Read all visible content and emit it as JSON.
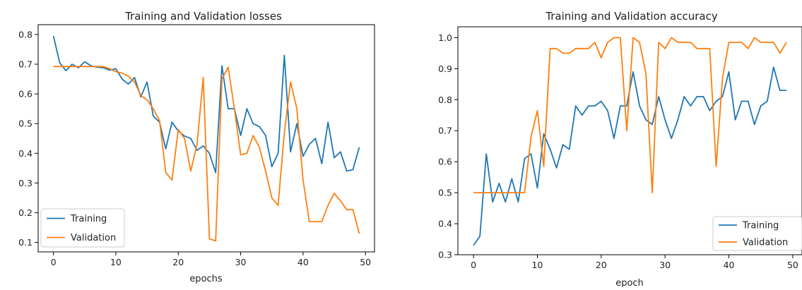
{
  "colors": {
    "training": "#1f77b4",
    "validation": "#ff7f0e",
    "axis": "#000000",
    "legend_border": "#cccccc"
  },
  "chart_data": [
    {
      "type": "line",
      "title": "Training and Validation losses",
      "xlabel": "epochs",
      "ylabel": "",
      "xlim": [
        -2.45,
        51.45
      ],
      "ylim": [
        0.068,
        0.833
      ],
      "xticks": [
        0,
        10,
        20,
        30,
        40,
        50
      ],
      "yticks": [
        0.1,
        0.2,
        0.3,
        0.4,
        0.5,
        0.6,
        0.7,
        0.8
      ],
      "xtick_labels": [
        "0",
        "10",
        "20",
        "30",
        "40",
        "50"
      ],
      "ytick_labels": [
        "0.1",
        "0.2",
        "0.3",
        "0.4",
        "0.5",
        "0.6",
        "0.7",
        "0.8"
      ],
      "grid": false,
      "legend_position": "lower-left",
      "x": [
        0,
        1,
        2,
        3,
        4,
        5,
        6,
        7,
        8,
        9,
        10,
        11,
        12,
        13,
        14,
        15,
        16,
        17,
        18,
        19,
        20,
        21,
        22,
        23,
        24,
        25,
        26,
        27,
        28,
        29,
        30,
        31,
        32,
        33,
        34,
        35,
        36,
        37,
        38,
        39,
        40,
        41,
        42,
        43,
        44,
        45,
        46,
        47,
        48,
        49
      ],
      "series": [
        {
          "name": "Training",
          "color": "#1f77b4",
          "values": [
            0.795,
            0.705,
            0.678,
            0.7,
            0.688,
            0.708,
            0.695,
            0.69,
            0.688,
            0.68,
            0.685,
            0.65,
            0.633,
            0.655,
            0.59,
            0.64,
            0.525,
            0.505,
            0.415,
            0.505,
            0.475,
            0.458,
            0.45,
            0.41,
            0.425,
            0.4,
            0.335,
            0.695,
            0.55,
            0.55,
            0.46,
            0.55,
            0.5,
            0.49,
            0.46,
            0.355,
            0.4,
            0.73,
            0.405,
            0.5,
            0.39,
            0.43,
            0.45,
            0.365,
            0.505,
            0.385,
            0.405,
            0.34,
            0.345,
            0.42
          ]
        },
        {
          "name": "Validation",
          "color": "#ff7f0e",
          "values": [
            0.692,
            0.692,
            0.692,
            0.692,
            0.692,
            0.692,
            0.692,
            0.692,
            0.692,
            0.685,
            0.675,
            0.67,
            0.66,
            0.64,
            0.595,
            0.58,
            0.55,
            0.51,
            0.335,
            0.31,
            0.48,
            0.45,
            0.34,
            0.43,
            0.655,
            0.112,
            0.105,
            0.65,
            0.69,
            0.55,
            0.395,
            0.4,
            0.46,
            0.42,
            0.34,
            0.25,
            0.225,
            0.47,
            0.64,
            0.55,
            0.31,
            0.17,
            0.17,
            0.17,
            0.225,
            0.265,
            0.24,
            0.21,
            0.21,
            0.13
          ]
        }
      ]
    },
    {
      "type": "line",
      "title": "Training and Validation accuracy",
      "xlabel": "epoch",
      "ylabel": "",
      "xlim": [
        -2.45,
        51.45
      ],
      "ylim": [
        0.3,
        1.035
      ],
      "xticks": [
        0,
        10,
        20,
        30,
        40,
        50
      ],
      "yticks": [
        0.3,
        0.4,
        0.5,
        0.6,
        0.7,
        0.8,
        0.9,
        1.0
      ],
      "xtick_labels": [
        "0",
        "10",
        "20",
        "30",
        "40",
        "50"
      ],
      "ytick_labels": [
        "0.3",
        "0.4",
        "0.5",
        "0.6",
        "0.7",
        "0.8",
        "0.9",
        "1.0"
      ],
      "grid": false,
      "legend_position": "lower-right",
      "x": [
        0,
        1,
        2,
        3,
        4,
        5,
        6,
        7,
        8,
        9,
        10,
        11,
        12,
        13,
        14,
        15,
        16,
        17,
        18,
        19,
        20,
        21,
        22,
        23,
        24,
        25,
        26,
        27,
        28,
        29,
        30,
        31,
        32,
        33,
        34,
        35,
        36,
        37,
        38,
        39,
        40,
        41,
        42,
        43,
        44,
        45,
        46,
        47,
        48,
        49
      ],
      "series": [
        {
          "name": "Training",
          "color": "#1f77b4",
          "values": [
            0.33,
            0.36,
            0.625,
            0.47,
            0.53,
            0.47,
            0.545,
            0.47,
            0.61,
            0.625,
            0.515,
            0.69,
            0.64,
            0.58,
            0.655,
            0.64,
            0.78,
            0.75,
            0.78,
            0.78,
            0.795,
            0.765,
            0.675,
            0.78,
            0.78,
            0.89,
            0.78,
            0.735,
            0.72,
            0.81,
            0.735,
            0.675,
            0.735,
            0.81,
            0.78,
            0.81,
            0.81,
            0.765,
            0.795,
            0.81,
            0.89,
            0.735,
            0.795,
            0.795,
            0.72,
            0.78,
            0.795,
            0.905,
            0.83,
            0.83
          ]
        },
        {
          "name": "Validation",
          "color": "#ff7f0e",
          "values": [
            0.5,
            0.5,
            0.5,
            0.5,
            0.5,
            0.5,
            0.5,
            0.5,
            0.5,
            0.68,
            0.765,
            0.585,
            0.965,
            0.965,
            0.95,
            0.95,
            0.965,
            0.965,
            0.965,
            0.985,
            0.935,
            0.985,
            1.0,
            1.0,
            0.7,
            1.0,
            0.985,
            0.885,
            0.5,
            0.985,
            0.965,
            1.0,
            0.985,
            0.985,
            0.985,
            0.965,
            0.965,
            0.965,
            0.585,
            0.87,
            0.985,
            0.985,
            0.985,
            0.965,
            1.0,
            0.985,
            0.985,
            0.985,
            0.95,
            0.985
          ]
        }
      ]
    }
  ]
}
